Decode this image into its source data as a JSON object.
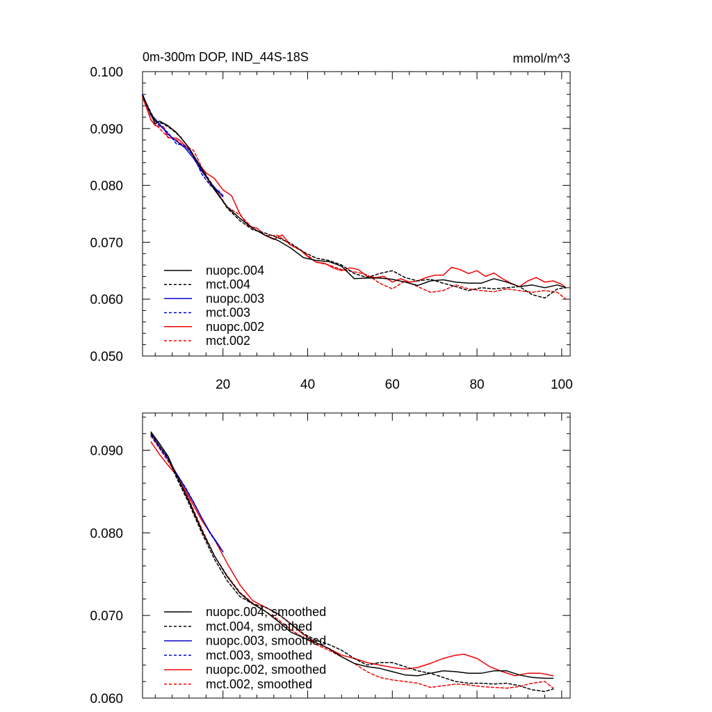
{
  "chart_data": [
    {
      "type": "line",
      "title": "0m-300m DOP, IND_44S-18S",
      "units_label": "mmol/m^3",
      "xlim": [
        1,
        102
      ],
      "ylim": [
        0.05,
        0.1
      ],
      "xticks": [
        20,
        40,
        60,
        80,
        100
      ],
      "xtick_labels": [
        "20",
        "40",
        "60",
        "80",
        "100"
      ],
      "yticks": [
        0.05,
        0.06,
        0.07,
        0.08,
        0.09,
        0.1
      ],
      "ytick_labels": [
        "0.050",
        "0.060",
        "0.070",
        "0.080",
        "0.090",
        "0.100"
      ],
      "legend_position": "bottom-left",
      "series": [
        {
          "name": "nuopc.004",
          "color": "#000000",
          "dash": "solid",
          "x": [
            1,
            4,
            5,
            7,
            9,
            12,
            15,
            18,
            21,
            24,
            27,
            30,
            33,
            36,
            39,
            42,
            45,
            48,
            51,
            54,
            57,
            60,
            63,
            66,
            69,
            72,
            75,
            78,
            81,
            84,
            87,
            90,
            93,
            96,
            99,
            101
          ],
          "y": [
            0.0958,
            0.0908,
            0.0913,
            0.0905,
            0.0893,
            0.0866,
            0.0828,
            0.0792,
            0.0762,
            0.0742,
            0.0725,
            0.0712,
            0.0703,
            0.069,
            0.0673,
            0.0668,
            0.0666,
            0.0658,
            0.0636,
            0.0637,
            0.0637,
            0.0635,
            0.063,
            0.0624,
            0.0632,
            0.0634,
            0.063,
            0.0628,
            0.0628,
            0.0636,
            0.063,
            0.0622,
            0.0625,
            0.062,
            0.0625,
            0.062
          ]
        },
        {
          "name": "mct.004",
          "color": "#000000",
          "dash": "dashed",
          "x": [
            1,
            4,
            6,
            8,
            10,
            12,
            15,
            18,
            21,
            24,
            27,
            30,
            33,
            36,
            39,
            42,
            45,
            48,
            51,
            54,
            57,
            60,
            63,
            66,
            69,
            72,
            75,
            78,
            81,
            84,
            87,
            90,
            93,
            96,
            99,
            101
          ],
          "y": [
            0.0958,
            0.0913,
            0.0908,
            0.0898,
            0.0885,
            0.0865,
            0.083,
            0.0795,
            0.076,
            0.0738,
            0.0722,
            0.0716,
            0.0708,
            0.0698,
            0.0683,
            0.0672,
            0.0668,
            0.066,
            0.0645,
            0.0638,
            0.0645,
            0.065,
            0.0638,
            0.0632,
            0.0635,
            0.0628,
            0.0622,
            0.0615,
            0.062,
            0.0618,
            0.062,
            0.0622,
            0.0608,
            0.0602,
            0.0618,
            0.062
          ]
        },
        {
          "name": "nuopc.003",
          "color": "#0000cc",
          "dash": "solid",
          "x": [
            1,
            3,
            5,
            7,
            9,
            11,
            13,
            15,
            17,
            19,
            20
          ],
          "y": [
            0.096,
            0.0925,
            0.0908,
            0.089,
            0.0878,
            0.0866,
            0.0848,
            0.0825,
            0.0805,
            0.0788,
            0.078
          ]
        },
        {
          "name": "mct.003",
          "color": "#0000cc",
          "dash": "dashed",
          "x": [
            1,
            3,
            5,
            7,
            9,
            11,
            13,
            15,
            17,
            19,
            20
          ],
          "y": [
            0.096,
            0.0922,
            0.0905,
            0.0893,
            0.0873,
            0.087,
            0.0852,
            0.082,
            0.08,
            0.079,
            0.0782
          ]
        },
        {
          "name": "nuopc.002",
          "color": "#ee0000",
          "dash": "solid",
          "x": [
            1,
            3,
            4,
            6,
            7,
            9,
            10,
            12,
            14,
            16,
            18,
            20,
            22,
            24,
            26,
            28,
            30,
            32,
            34,
            36,
            38,
            40,
            42,
            44,
            46,
            48,
            50,
            52,
            54,
            56,
            58,
            60,
            62,
            64,
            66,
            68,
            70,
            72,
            74,
            76,
            78,
            80,
            82,
            84,
            86,
            88,
            90,
            92,
            94,
            96,
            98,
            100,
            101
          ],
          "y": [
            0.0955,
            0.0915,
            0.0905,
            0.0903,
            0.0884,
            0.0883,
            0.0878,
            0.0862,
            0.084,
            0.0822,
            0.0812,
            0.0792,
            0.0782,
            0.075,
            0.0728,
            0.0725,
            0.0712,
            0.0705,
            0.0713,
            0.0695,
            0.0688,
            0.0675,
            0.0665,
            0.0663,
            0.0655,
            0.065,
            0.0655,
            0.0652,
            0.064,
            0.0638,
            0.064,
            0.063,
            0.0636,
            0.063,
            0.0632,
            0.0638,
            0.0642,
            0.0642,
            0.0656,
            0.0652,
            0.0645,
            0.065,
            0.064,
            0.0646,
            0.0636,
            0.0628,
            0.0622,
            0.0632,
            0.0638,
            0.063,
            0.0632,
            0.0626,
            0.062
          ]
        },
        {
          "name": "mct.002",
          "color": "#ee0000",
          "dash": "dashed",
          "x": [
            1,
            3,
            5,
            7,
            9,
            11,
            13,
            15,
            17,
            19,
            21,
            24,
            27,
            30,
            33,
            36,
            39,
            42,
            45,
            48,
            51,
            54,
            57,
            60,
            63,
            66,
            69,
            72,
            75,
            78,
            81,
            84,
            87,
            90,
            93,
            96,
            99,
            101
          ],
          "y": [
            0.0958,
            0.0915,
            0.09,
            0.0885,
            0.088,
            0.0868,
            0.0862,
            0.0832,
            0.0802,
            0.0785,
            0.0762,
            0.0748,
            0.0725,
            0.0712,
            0.0712,
            0.0695,
            0.0683,
            0.0665,
            0.066,
            0.0652,
            0.0648,
            0.0643,
            0.0628,
            0.0618,
            0.0632,
            0.0622,
            0.0612,
            0.0615,
            0.0625,
            0.0618,
            0.0615,
            0.0613,
            0.0618,
            0.0615,
            0.0612,
            0.0615,
            0.0612,
            0.06
          ]
        }
      ]
    },
    {
      "type": "line",
      "title": "",
      "units_label": "",
      "xlim": [
        1,
        102
      ],
      "ylim": [
        0.06,
        0.0945
      ],
      "xticks": [
        20,
        40,
        60,
        80,
        100
      ],
      "xtick_labels": [],
      "yticks": [
        0.06,
        0.07,
        0.08,
        0.09
      ],
      "ytick_labels": [
        "0.060",
        "0.070",
        "0.080",
        "0.090"
      ],
      "legend_position": "bottom-left",
      "series": [
        {
          "name": "nuopc.004, smoothed",
          "color": "#000000",
          "dash": "solid",
          "x": [
            3,
            5,
            7,
            9,
            12,
            15,
            18,
            21,
            24,
            27,
            30,
            33,
            36,
            39,
            42,
            45,
            48,
            51,
            54,
            57,
            60,
            63,
            66,
            69,
            72,
            75,
            78,
            81,
            84,
            87,
            90,
            93,
            96,
            98
          ],
          "y": [
            0.0922,
            0.0908,
            0.0893,
            0.087,
            0.0838,
            0.0803,
            0.0772,
            0.0747,
            0.0727,
            0.0714,
            0.0705,
            0.0693,
            0.068,
            0.0673,
            0.0667,
            0.066,
            0.065,
            0.0642,
            0.0638,
            0.0636,
            0.0632,
            0.0628,
            0.0627,
            0.063,
            0.0633,
            0.0632,
            0.063,
            0.063,
            0.0633,
            0.0633,
            0.0628,
            0.0625,
            0.0624,
            0.0624
          ]
        },
        {
          "name": "mct.004, smoothed",
          "color": "#000000",
          "dash": "dashed",
          "x": [
            3,
            5,
            7,
            9,
            12,
            15,
            18,
            21,
            24,
            27,
            30,
            33,
            36,
            39,
            42,
            45,
            48,
            51,
            54,
            57,
            60,
            63,
            66,
            69,
            72,
            75,
            78,
            81,
            84,
            87,
            90,
            93,
            96,
            98
          ],
          "y": [
            0.092,
            0.0905,
            0.0891,
            0.0867,
            0.0835,
            0.08,
            0.0768,
            0.0742,
            0.0723,
            0.0714,
            0.071,
            0.0702,
            0.069,
            0.0678,
            0.067,
            0.0665,
            0.0658,
            0.0648,
            0.064,
            0.0643,
            0.0643,
            0.0638,
            0.0633,
            0.063,
            0.0625,
            0.062,
            0.0618,
            0.0618,
            0.0617,
            0.0618,
            0.0615,
            0.061,
            0.0608,
            0.0611
          ]
        },
        {
          "name": "nuopc.003, smoothed",
          "color": "#0000cc",
          "dash": "solid",
          "x": [
            3,
            5,
            7,
            9,
            11,
            13,
            15,
            17,
            19,
            20
          ],
          "y": [
            0.092,
            0.0905,
            0.089,
            0.0872,
            0.0855,
            0.0837,
            0.0818,
            0.08,
            0.0785,
            0.0777
          ]
        },
        {
          "name": "mct.003, smoothed",
          "color": "#0000cc",
          "dash": "dashed",
          "x": [
            3,
            5,
            7,
            9,
            11,
            13,
            15,
            17,
            19,
            20
          ],
          "y": [
            0.0918,
            0.0903,
            0.0889,
            0.0872,
            0.0856,
            0.0838,
            0.0818,
            0.0799,
            0.0784,
            0.0777
          ]
        },
        {
          "name": "nuopc.002, smoothed",
          "color": "#ee0000",
          "dash": "solid",
          "x": [
            3,
            5,
            7,
            9,
            12,
            15,
            18,
            21,
            24,
            27,
            30,
            33,
            36,
            39,
            42,
            45,
            48,
            51,
            54,
            57,
            60,
            63,
            66,
            69,
            72,
            75,
            77,
            80,
            83,
            86,
            89,
            92,
            95,
            98
          ],
          "y": [
            0.091,
            0.0895,
            0.0882,
            0.087,
            0.0843,
            0.0815,
            0.0792,
            0.0763,
            0.0737,
            0.0718,
            0.071,
            0.0702,
            0.069,
            0.0677,
            0.0667,
            0.066,
            0.0652,
            0.0648,
            0.0643,
            0.064,
            0.0637,
            0.0635,
            0.0637,
            0.0642,
            0.0648,
            0.0652,
            0.0653,
            0.0648,
            0.0638,
            0.0632,
            0.0627,
            0.063,
            0.063,
            0.0627
          ]
        },
        {
          "name": "mct.002, smoothed",
          "color": "#ee0000",
          "dash": "dashed",
          "x": [
            3,
            5,
            7,
            9,
            12,
            15,
            18,
            21,
            24,
            27,
            30,
            33,
            36,
            39,
            42,
            45,
            48,
            51,
            54,
            57,
            60,
            63,
            66,
            69,
            72,
            75,
            78,
            81,
            84,
            87,
            90,
            93,
            96,
            98
          ],
          "y": [
            0.0917,
            0.0902,
            0.0887,
            0.087,
            0.084,
            0.0805,
            0.0772,
            0.0748,
            0.0728,
            0.0715,
            0.0705,
            0.0695,
            0.0683,
            0.0673,
            0.0665,
            0.0658,
            0.065,
            0.0642,
            0.0632,
            0.0625,
            0.0622,
            0.062,
            0.0618,
            0.0613,
            0.0615,
            0.0617,
            0.0616,
            0.0614,
            0.0613,
            0.0612,
            0.0614,
            0.0618,
            0.062,
            0.0612
          ]
        }
      ]
    }
  ]
}
